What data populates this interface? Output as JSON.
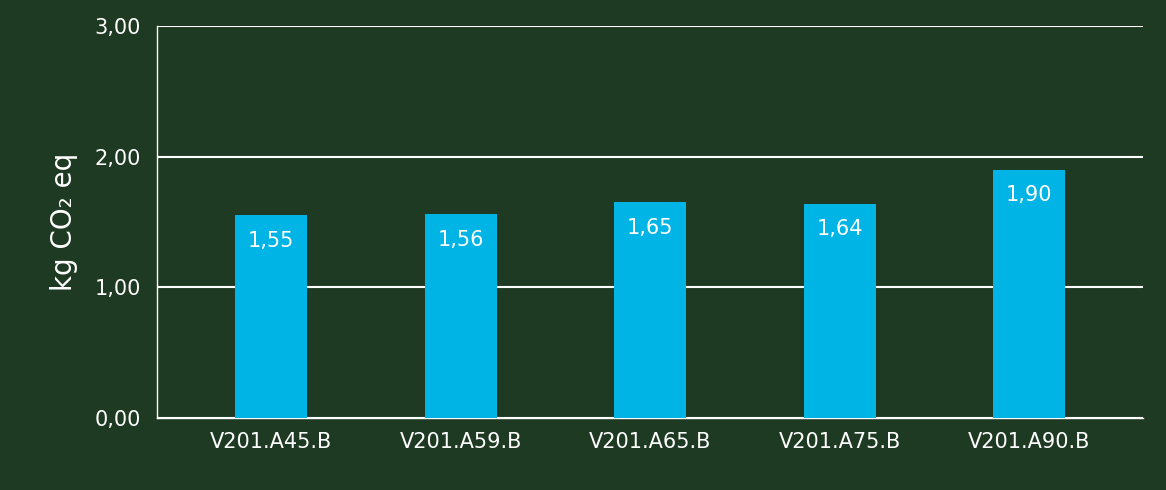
{
  "chart_data": {
    "type": "bar",
    "y_label": "kg CO₂ eq",
    "categories": [
      "V201.A45.B",
      "V201.A59.B",
      "V201.A65.B",
      "V201.A75.B",
      "V201.A90.B"
    ],
    "values": [
      1.55,
      1.56,
      1.65,
      1.64,
      1.9
    ],
    "value_labels": [
      "1,55",
      "1,56",
      "1,65",
      "1,64",
      "1,90"
    ],
    "color": "#00b4e6",
    "ylim": [
      0,
      3
    ],
    "yticks": [
      {
        "value": 0,
        "label": "0,00"
      },
      {
        "value": 1,
        "label": "1,00"
      },
      {
        "value": 2,
        "label": "2,00"
      },
      {
        "value": 3,
        "label": "3,00"
      }
    ],
    "grid": true,
    "data_labels": true
  }
}
